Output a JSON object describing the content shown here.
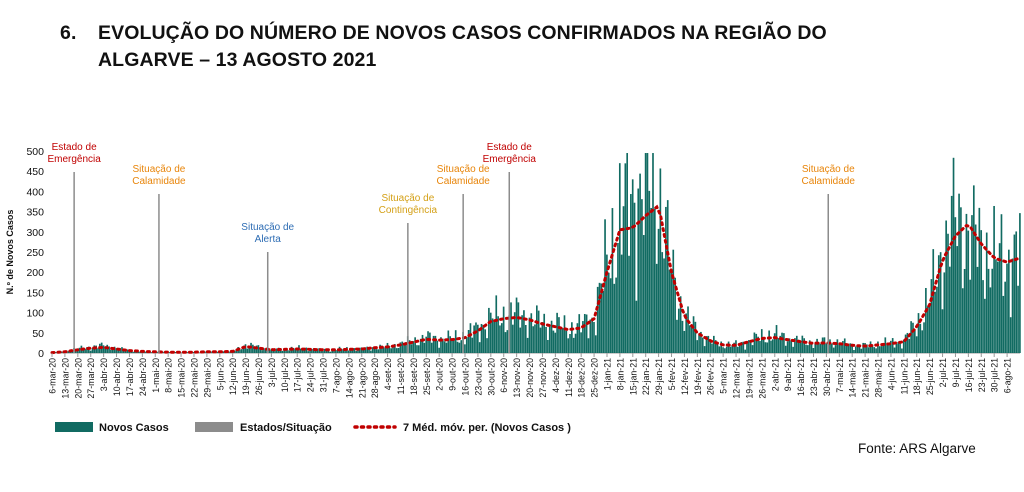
{
  "header": {
    "number": "6.",
    "title_line1": "EVOLUÇÃO DO NÚMERO DE NOVOS CASOS CONFIRMADOS NA REGIÃO DO",
    "title_line2": "ALGARVE – 13 AGOSTO 2021"
  },
  "source": "Fonte: ARS Algarve",
  "colors": {
    "bars": "#116b62",
    "states": "#8c8c8c",
    "moving_avg": "#c00000",
    "red_label": "#c00000",
    "orange_label": "#e8850a",
    "blue_label": "#2e6db4",
    "gold_label": "#d4a017"
  },
  "chart_data": {
    "type": "bar",
    "ylabel": "N.º de Novos Casos",
    "ylim": [
      0,
      500
    ],
    "yticks": [
      0,
      50,
      100,
      150,
      200,
      250,
      300,
      350,
      400,
      450,
      500
    ],
    "x_start": "2020-03-06",
    "x_end": "2021-08-13",
    "xtick_labels": [
      "6-mar-20",
      "13-mar-20",
      "20-mar-20",
      "27-mar-20",
      "3-abr-20",
      "10-abr-20",
      "17-abr-20",
      "24-abr-20",
      "1-mai-20",
      "8-mai-20",
      "15-mai-20",
      "22-mai-20",
      "29-mai-20",
      "5-jun-20",
      "12-jun-20",
      "19-jun-20",
      "26-jun-20",
      "3-jul-20",
      "10-jul-20",
      "17-jul-20",
      "24-jul-20",
      "31-jul-20",
      "7-ago-20",
      "14-ago-20",
      "21-ago-20",
      "28-ago-20",
      "4-set-20",
      "11-set-20",
      "18-set-20",
      "25-set-20",
      "2-out-20",
      "9-out-20",
      "16-out-20",
      "23-out-20",
      "30-out-20",
      "6-nov-20",
      "13-nov-20",
      "20-nov-20",
      "27-nov-20",
      "4-dez-20",
      "11-dez-20",
      "18-dez-20",
      "25-dez-20",
      "1-jan-21",
      "8-jan-21",
      "15-jan-21",
      "22-jan-21",
      "29-jan-21",
      "5-fev-21",
      "12-fev-21",
      "19-fev-21",
      "26-fev-21",
      "5-mar-21",
      "12-mar-21",
      "19-mar-21",
      "26-mar-21",
      "2-abr-21",
      "9-abr-21",
      "16-abr-21",
      "23-abr-21",
      "30-abr-21",
      "7-mai-21",
      "14-mai-21",
      "21-mai-21",
      "28-mai-21",
      "4-jun-21",
      "11-jun-21",
      "18-jun-21",
      "25-jun-21",
      "2-jul-21",
      "9-jul-21",
      "16-jul-21",
      "23-jul-21",
      "30-jul-21",
      "6-ago-21"
    ],
    "series": [
      {
        "name": "Novos Casos",
        "type": "bar",
        "note": "daily values, 7-day sampling shown below as approximate weekly levels",
        "weekly_values": [
          1,
          4,
          10,
          15,
          18,
          12,
          6,
          4,
          3,
          2,
          2,
          3,
          3,
          3,
          4,
          20,
          14,
          8,
          10,
          12,
          10,
          8,
          9,
          10,
          10,
          14,
          16,
          22,
          30,
          38,
          35,
          35,
          42,
          60,
          85,
          90,
          95,
          85,
          75,
          70,
          60,
          65,
          90,
          220,
          330,
          380,
          420,
          400,
          200,
          90,
          55,
          30,
          20,
          20,
          30,
          40,
          45,
          35,
          30,
          25,
          28,
          25,
          20,
          18,
          22,
          25,
          30,
          70,
          130,
          250,
          330,
          300,
          260,
          230,
          230,
          240
        ]
      },
      {
        "name": "Estados/Situação",
        "type": "markers"
      },
      {
        "name": "7 Méd. móv. per. (Novos Casos )",
        "type": "line",
        "weekly_values": [
          1,
          3,
          8,
          12,
          14,
          10,
          6,
          4,
          3,
          2,
          2,
          2,
          3,
          3,
          4,
          16,
          12,
          8,
          9,
          10,
          9,
          8,
          8,
          9,
          10,
          13,
          15,
          20,
          27,
          34,
          32,
          33,
          38,
          55,
          78,
          85,
          88,
          82,
          72,
          65,
          58,
          62,
          85,
          200,
          305,
          310,
          340,
          365,
          200,
          90,
          50,
          30,
          20,
          19,
          28,
          36,
          38,
          33,
          28,
          24,
          25,
          23,
          19,
          17,
          20,
          23,
          28,
          65,
          120,
          230,
          290,
          320,
          270,
          235,
          225,
          235
        ]
      }
    ],
    "annotations": [
      {
        "date": "2020-03-18",
        "lines": [
          "Estado de",
          "Emergência"
        ],
        "color": "red"
      },
      {
        "date": "2020-05-03",
        "lines": [
          "Situação de",
          "Calamidade"
        ],
        "color": "orange"
      },
      {
        "date": "2020-07-01",
        "lines": [
          "Situação de",
          "Alerta"
        ],
        "color": "blue"
      },
      {
        "date": "2020-09-15",
        "lines": [
          "Situação de",
          "Contingência"
        ],
        "color": "gold"
      },
      {
        "date": "2020-10-15",
        "lines": [
          "Situação de",
          "Calamidade"
        ],
        "color": "orange"
      },
      {
        "date": "2020-11-09",
        "lines": [
          "Estado de",
          "Emergência"
        ],
        "color": "red"
      },
      {
        "date": "2021-05-01",
        "lines": [
          "Situação de",
          "Calamidade"
        ],
        "color": "orange"
      }
    ],
    "legend": {
      "placement": "bottom-left",
      "entries": [
        "Novos Casos",
        "Estados/Situação",
        "7 Méd. móv. per. (Novos Casos )"
      ]
    },
    "grid": false
  }
}
